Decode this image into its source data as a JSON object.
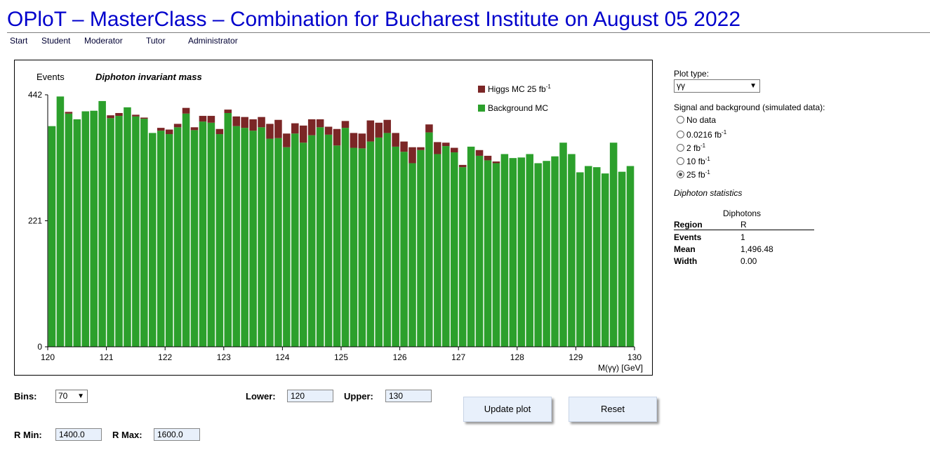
{
  "header": {
    "title": "OPloT – MasterClass – Combination for Bucharest Institute on August 05 2022",
    "nav": [
      "Start",
      "Student",
      "Moderator",
      "Tutor",
      "Administrator"
    ]
  },
  "plot_panel": {
    "plot_type_label": "Plot type:",
    "plot_type_value": "γγ",
    "signal_label": "Signal and background (simulated data):",
    "options": [
      {
        "text": "No data",
        "sup": "",
        "checked": false
      },
      {
        "text": "0.0216 fb",
        "sup": "-1",
        "checked": false
      },
      {
        "text": "2 fb",
        "sup": "-1",
        "checked": false
      },
      {
        "text": "10 fb",
        "sup": "-1",
        "checked": false
      },
      {
        "text": "25 fb",
        "sup": "-1",
        "checked": true
      }
    ],
    "stats_title": "Diphoton statistics",
    "stats_col_header": "Diphotons",
    "stats_region_label": "Region",
    "stats_region_value": "R",
    "stats_rows": [
      {
        "label": "Events",
        "value": "1"
      },
      {
        "label": "Mean",
        "value": "1,496.48"
      },
      {
        "label": "Width",
        "value": "0.00"
      }
    ]
  },
  "controls": {
    "bins_label": "Bins:",
    "bins_value": "70",
    "lower_label": "Lower:",
    "lower_value": "120",
    "upper_label": "Upper:",
    "upper_value": "130",
    "rmin_label": "R Min:",
    "rmin_value": "1400.0",
    "rmax_label": "R Max:",
    "rmax_value": "1600.0",
    "update_label": "Update plot",
    "reset_label": "Reset"
  },
  "colors": {
    "title": "#0000cc",
    "background_mc": "#2ca02c",
    "higgs_mc": "#7b2626",
    "input_fill": "#e8f0fb"
  },
  "chart_data": {
    "type": "bar",
    "stacked": true,
    "title": "Diphoton invariant mass",
    "ylabel": "Events",
    "xlabel": "M(γγ) [GeV]",
    "xlim": [
      120,
      130
    ],
    "ylim": [
      0,
      442
    ],
    "yticks": [
      0,
      221,
      442
    ],
    "xticks": [
      120,
      121,
      122,
      123,
      124,
      125,
      126,
      127,
      128,
      129,
      130
    ],
    "legend_position": "top-right",
    "series": [
      {
        "name": "Background MC",
        "color": "#2ca02c",
        "values": [
          387,
          439,
          409,
          399,
          413,
          414,
          431,
          401,
          405,
          420,
          404,
          400,
          375,
          379,
          373,
          385,
          409,
          380,
          395,
          393,
          373,
          410,
          387,
          384,
          379,
          385,
          365,
          366,
          350,
          374,
          358,
          371,
          385,
          372,
          353,
          384,
          349,
          348,
          360,
          367,
          375,
          351,
          342,
          322,
          345,
          376,
          338,
          352,
          341,
          315,
          351,
          335,
          327,
          322,
          338,
          331,
          332,
          338,
          322,
          326,
          334,
          358,
          338,
          306,
          317,
          315,
          304,
          358,
          307,
          317
        ]
      },
      {
        "name": "Higgs MC 25 fb-1",
        "color": "#7b2626",
        "values": [
          0,
          0,
          3,
          0,
          0,
          0,
          0,
          5,
          5,
          0,
          3,
          2,
          0,
          5,
          8,
          6,
          10,
          5,
          10,
          12,
          9,
          6,
          17,
          19,
          20,
          18,
          26,
          32,
          24,
          18,
          30,
          28,
          14,
          14,
          29,
          12,
          26,
          26,
          37,
          26,
          23,
          24,
          18,
          28,
          5,
          14,
          21,
          6,
          8,
          4,
          0,
          10,
          8,
          3,
          0,
          0,
          0,
          0,
          0,
          0,
          0,
          0,
          0,
          0,
          0,
          0,
          0,
          0,
          0,
          0
        ]
      }
    ],
    "legend_label_main": "Higgs MC 25 fb",
    "legend_label_sup": "-1"
  }
}
